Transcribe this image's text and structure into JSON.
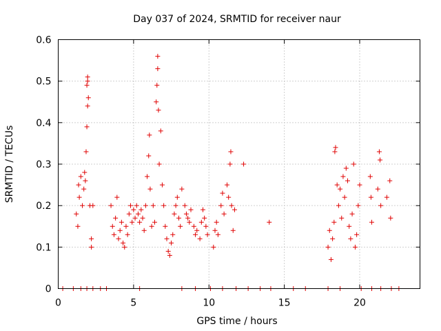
{
  "chart_data": {
    "type": "scatter",
    "title": "Day 037 of 2024, SRMTID for receiver naur",
    "xlabel": "GPS time / hours",
    "ylabel": "SRMTID / TECUs",
    "xlim": [
      0,
      24
    ],
    "ylim": [
      0,
      0.6
    ],
    "xticks": [
      0,
      5,
      10,
      15,
      20
    ],
    "xtick_labels": [
      "0",
      "5",
      "10",
      "15",
      "20"
    ],
    "yticks": [
      0,
      0.1,
      0.2,
      0.3,
      0.4,
      0.5,
      0.6
    ],
    "ytick_labels": [
      "0",
      "0.1",
      "0.2",
      "0.3",
      "0.4",
      "0.5",
      "0.6"
    ],
    "grid": true,
    "marker": "+",
    "color": "#e00000",
    "series": [
      {
        "name": "SRMTID",
        "points": [
          [
            1.2,
            0.18
          ],
          [
            1.3,
            0.15
          ],
          [
            1.35,
            0.25
          ],
          [
            1.4,
            0.22
          ],
          [
            1.5,
            0.27
          ],
          [
            1.6,
            0.2
          ],
          [
            1.7,
            0.24
          ],
          [
            1.75,
            0.28
          ],
          [
            1.8,
            0.26
          ],
          [
            1.85,
            0.33
          ],
          [
            1.9,
            0.39
          ],
          [
            1.95,
            0.44
          ],
          [
            1.9,
            0.49
          ],
          [
            1.95,
            0.5
          ],
          [
            1.95,
            0.51
          ],
          [
            2.0,
            0.46
          ],
          [
            2.1,
            0.2
          ],
          [
            2.2,
            0.12
          ],
          [
            2.2,
            0.1
          ],
          [
            2.3,
            0.2
          ],
          [
            3.5,
            0.2
          ],
          [
            3.6,
            0.15
          ],
          [
            3.7,
            0.13
          ],
          [
            3.8,
            0.17
          ],
          [
            3.9,
            0.22
          ],
          [
            4.0,
            0.12
          ],
          [
            4.1,
            0.14
          ],
          [
            4.2,
            0.16
          ],
          [
            4.3,
            0.11
          ],
          [
            4.4,
            0.1
          ],
          [
            4.5,
            0.15
          ],
          [
            4.6,
            0.13
          ],
          [
            4.7,
            0.18
          ],
          [
            4.8,
            0.2
          ],
          [
            4.9,
            0.16
          ],
          [
            5.0,
            0.19
          ],
          [
            5.1,
            0.17
          ],
          [
            5.2,
            0.2
          ],
          [
            5.3,
            0.18
          ],
          [
            5.4,
            0.16
          ],
          [
            5.5,
            0.19
          ],
          [
            5.6,
            0.17
          ],
          [
            5.7,
            0.14
          ],
          [
            5.8,
            0.2
          ],
          [
            5.9,
            0.27
          ],
          [
            6.0,
            0.32
          ],
          [
            6.05,
            0.37
          ],
          [
            6.1,
            0.24
          ],
          [
            6.2,
            0.15
          ],
          [
            6.3,
            0.2
          ],
          [
            6.4,
            0.16
          ],
          [
            6.5,
            0.45
          ],
          [
            6.55,
            0.49
          ],
          [
            6.6,
            0.53
          ],
          [
            6.6,
            0.56
          ],
          [
            6.65,
            0.43
          ],
          [
            6.7,
            0.3
          ],
          [
            6.8,
            0.38
          ],
          [
            6.9,
            0.25
          ],
          [
            7.0,
            0.2
          ],
          [
            7.1,
            0.15
          ],
          [
            7.2,
            0.12
          ],
          [
            7.3,
            0.09
          ],
          [
            7.4,
            0.08
          ],
          [
            7.5,
            0.11
          ],
          [
            7.6,
            0.13
          ],
          [
            7.7,
            0.18
          ],
          [
            7.8,
            0.2
          ],
          [
            7.9,
            0.22
          ],
          [
            8.0,
            0.17
          ],
          [
            8.1,
            0.15
          ],
          [
            8.2,
            0.24
          ],
          [
            8.4,
            0.2
          ],
          [
            8.5,
            0.18
          ],
          [
            8.6,
            0.17
          ],
          [
            8.7,
            0.16
          ],
          [
            8.8,
            0.19
          ],
          [
            9.0,
            0.15
          ],
          [
            9.1,
            0.13
          ],
          [
            9.2,
            0.14
          ],
          [
            9.4,
            0.12
          ],
          [
            9.5,
            0.16
          ],
          [
            9.6,
            0.19
          ],
          [
            9.7,
            0.17
          ],
          [
            9.8,
            0.15
          ],
          [
            9.9,
            0.13
          ],
          [
            10.3,
            0.1
          ],
          [
            10.4,
            0.14
          ],
          [
            10.5,
            0.16
          ],
          [
            10.6,
            0.13
          ],
          [
            10.8,
            0.2
          ],
          [
            10.9,
            0.23
          ],
          [
            11.0,
            0.18
          ],
          [
            11.2,
            0.25
          ],
          [
            11.3,
            0.22
          ],
          [
            11.4,
            0.3
          ],
          [
            11.45,
            0.33
          ],
          [
            11.5,
            0.2
          ],
          [
            11.6,
            0.14
          ],
          [
            11.7,
            0.19
          ],
          [
            12.3,
            0.3
          ],
          [
            14.0,
            0.16
          ],
          [
            17.9,
            0.1
          ],
          [
            18.0,
            0.14
          ],
          [
            18.1,
            0.07
          ],
          [
            18.2,
            0.12
          ],
          [
            18.3,
            0.16
          ],
          [
            18.35,
            0.33
          ],
          [
            18.4,
            0.34
          ],
          [
            18.5,
            0.25
          ],
          [
            18.6,
            0.2
          ],
          [
            18.7,
            0.24
          ],
          [
            18.8,
            0.17
          ],
          [
            18.9,
            0.27
          ],
          [
            19.0,
            0.22
          ],
          [
            19.1,
            0.29
          ],
          [
            19.2,
            0.26
          ],
          [
            19.3,
            0.15
          ],
          [
            19.4,
            0.12
          ],
          [
            19.5,
            0.18
          ],
          [
            19.6,
            0.3
          ],
          [
            19.7,
            0.1
          ],
          [
            19.8,
            0.13
          ],
          [
            19.9,
            0.2
          ],
          [
            20.0,
            0.25
          ],
          [
            20.7,
            0.27
          ],
          [
            20.75,
            0.22
          ],
          [
            20.8,
            0.16
          ],
          [
            21.2,
            0.24
          ],
          [
            21.3,
            0.33
          ],
          [
            21.35,
            0.31
          ],
          [
            21.4,
            0.2
          ],
          [
            21.8,
            0.22
          ],
          [
            22.0,
            0.26
          ],
          [
            22.05,
            0.17
          ],
          [
            0.3,
            0
          ],
          [
            1.0,
            0
          ],
          [
            1.5,
            0
          ],
          [
            1.9,
            0
          ],
          [
            2.3,
            0
          ],
          [
            2.8,
            0
          ],
          [
            3.2,
            0
          ],
          [
            5.4,
            0
          ],
          [
            8.2,
            0
          ],
          [
            9.1,
            0
          ],
          [
            10.1,
            0
          ],
          [
            10.9,
            0
          ],
          [
            11.8,
            0
          ],
          [
            12.6,
            0
          ],
          [
            13.4,
            0
          ],
          [
            14.1,
            0
          ],
          [
            15.6,
            0
          ],
          [
            16.4,
            0
          ],
          [
            17.9,
            0
          ],
          [
            18.7,
            0
          ],
          [
            20.1,
            0
          ],
          [
            20.8,
            0
          ],
          [
            21.4,
            0
          ],
          [
            22.1,
            0
          ],
          [
            22.6,
            0
          ]
        ]
      }
    ]
  }
}
